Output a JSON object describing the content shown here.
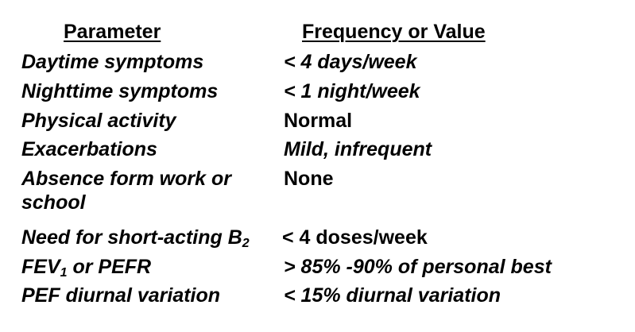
{
  "table": {
    "headers": {
      "parameter": "Parameter",
      "value": "Frequency or Value"
    },
    "rows": [
      {
        "parameter": "Daytime symptoms",
        "value": "< 4 days/week"
      },
      {
        "parameter": "Nighttime symptoms",
        "value": "< 1 night/week"
      },
      {
        "parameter": "Physical activity",
        "value": "Normal"
      },
      {
        "parameter": "Exacerbations",
        "value": "Mild, infrequent"
      },
      {
        "parameter": "Absence form work or school",
        "value": "None"
      },
      {
        "parameter": "Need for short-acting B",
        "parameter_subscript": "2",
        "value": "< 4 doses/week"
      },
      {
        "parameter": "FEV",
        "parameter_subscript": "1",
        "parameter_suffix": " or PEFR",
        "value": "> 85% -90% of personal best"
      },
      {
        "parameter": "PEF diurnal variation",
        "value": "< 15% diurnal variation"
      }
    ]
  }
}
